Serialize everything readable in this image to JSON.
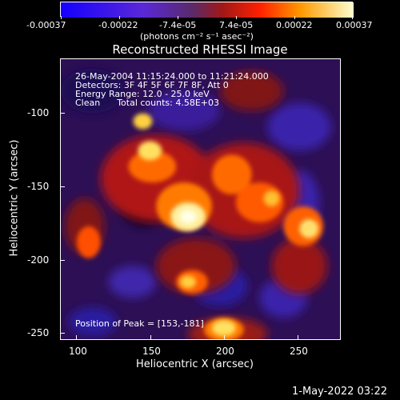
{
  "colorbar": {
    "ticks": [
      "-0.00037",
      "-0.00022",
      "-7.4e-05",
      "7.4e-05",
      "0.00022",
      "0.00037"
    ],
    "units": "(photons cm⁻² s⁻¹ asec⁻²)"
  },
  "plot": {
    "title": "Reconstructed RHESSI Image",
    "info_lines": [
      "26-May-2004 11:15:24.000 to 11:21:24.000",
      "Detectors: 3F 4F 5F 6F 7F 8F, Att 0",
      "Energy Range: 12.0 - 25.0 keV",
      "Clean      Total counts: 4.58E+03"
    ],
    "peak_text": "Position of Peak = [153,-181]",
    "xlabel": "Heliocentric X (arcsec)",
    "ylabel": "Heliocentric Y (arcsec)",
    "xticks": [
      "100",
      "150",
      "200",
      "250"
    ],
    "yticks": [
      "-100",
      "-150",
      "-200",
      "-250"
    ]
  },
  "footer": {
    "date": "1-May-2022 03:22"
  },
  "colors": {
    "background": "#000000",
    "low": "#1a1aff",
    "mid": "#ff2200",
    "high": "#ffffcc"
  }
}
